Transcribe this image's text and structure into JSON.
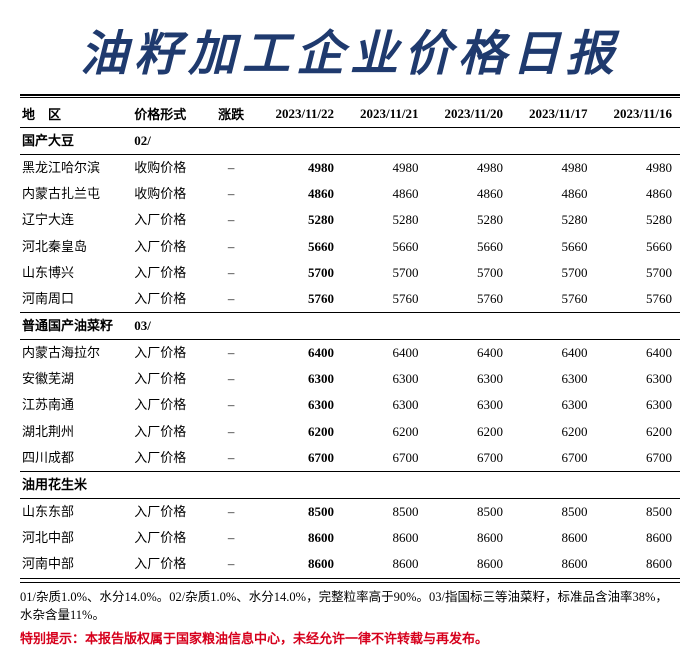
{
  "title": "油籽加工企业价格日报",
  "title_color": "#1f3a6e",
  "columns": {
    "region": "地　区",
    "price_form": "价格形式",
    "change": "涨跌",
    "d1": "2023/11/22",
    "d2": "2023/11/21",
    "d3": "2023/11/20",
    "d4": "2023/11/17",
    "d5": "2023/11/16"
  },
  "sections": [
    {
      "name": "国产大豆",
      "code": "02/",
      "rows": [
        {
          "region": "黑龙江哈尔滨",
          "form": "收购价格",
          "chg": "–",
          "bold": [
            "4980"
          ],
          "rest": [
            "4980",
            "4980",
            "4980",
            "4980"
          ]
        },
        {
          "region": "内蒙古扎兰屯",
          "form": "收购价格",
          "chg": "–",
          "bold": [
            "4860"
          ],
          "rest": [
            "4860",
            "4860",
            "4860",
            "4860"
          ]
        },
        {
          "region": "辽宁大连",
          "form": "入厂价格",
          "chg": "–",
          "bold": [
            "5280"
          ],
          "rest": [
            "5280",
            "5280",
            "5280",
            "5280"
          ]
        },
        {
          "region": "河北秦皇岛",
          "form": "入厂价格",
          "chg": "–",
          "bold": [
            "5660"
          ],
          "rest": [
            "5660",
            "5660",
            "5660",
            "5660"
          ]
        },
        {
          "region": "山东博兴",
          "form": "入厂价格",
          "chg": "–",
          "bold": [
            "5700"
          ],
          "rest": [
            "5700",
            "5700",
            "5700",
            "5700"
          ]
        },
        {
          "region": "河南周口",
          "form": "入厂价格",
          "chg": "–",
          "bold": [
            "5760"
          ],
          "rest": [
            "5760",
            "5760",
            "5760",
            "5760"
          ]
        }
      ]
    },
    {
      "name": "普通国产油菜籽",
      "code": "03/",
      "rows": [
        {
          "region": "内蒙古海拉尔",
          "form": "入厂价格",
          "chg": "–",
          "bold": [
            "6400"
          ],
          "rest": [
            "6400",
            "6400",
            "6400",
            "6400"
          ]
        },
        {
          "region": "安徽芜湖",
          "form": "入厂价格",
          "chg": "–",
          "bold": [
            "6300"
          ],
          "rest": [
            "6300",
            "6300",
            "6300",
            "6300"
          ]
        },
        {
          "region": "江苏南通",
          "form": "入厂价格",
          "chg": "–",
          "bold": [
            "6300"
          ],
          "rest": [
            "6300",
            "6300",
            "6300",
            "6300"
          ]
        },
        {
          "region": "湖北荆州",
          "form": "入厂价格",
          "chg": "–",
          "bold": [
            "6200"
          ],
          "rest": [
            "6200",
            "6200",
            "6200",
            "6200"
          ]
        },
        {
          "region": "四川成都",
          "form": "入厂价格",
          "chg": "–",
          "bold": [
            "6700"
          ],
          "rest": [
            "6700",
            "6700",
            "6700",
            "6700"
          ]
        }
      ]
    },
    {
      "name": "油用花生米",
      "code": "",
      "rows": [
        {
          "region": "山东东部",
          "form": "入厂价格",
          "chg": "–",
          "bold": [
            "8500"
          ],
          "rest": [
            "8500",
            "8500",
            "8500",
            "8500"
          ]
        },
        {
          "region": "河北中部",
          "form": "入厂价格",
          "chg": "–",
          "bold": [
            "8600"
          ],
          "rest": [
            "8600",
            "8600",
            "8600",
            "8600"
          ]
        },
        {
          "region": "河南中部",
          "form": "入厂价格",
          "chg": "–",
          "bold": [
            "8600"
          ],
          "rest": [
            "8600",
            "8600",
            "8600",
            "8600"
          ]
        }
      ]
    }
  ],
  "footnote": "01/杂质1.0%、水分14.0%。02/杂质1.0%、水分14.0%，完整粒率高于90%。03/指国标三等油菜籽，标准品含油率38%，水杂含量11%。",
  "warning": "特别提示：本报告版权属于国家粮油信息中心，未经允许一律不许转载与再发布。",
  "warning_color": "#d6001c"
}
